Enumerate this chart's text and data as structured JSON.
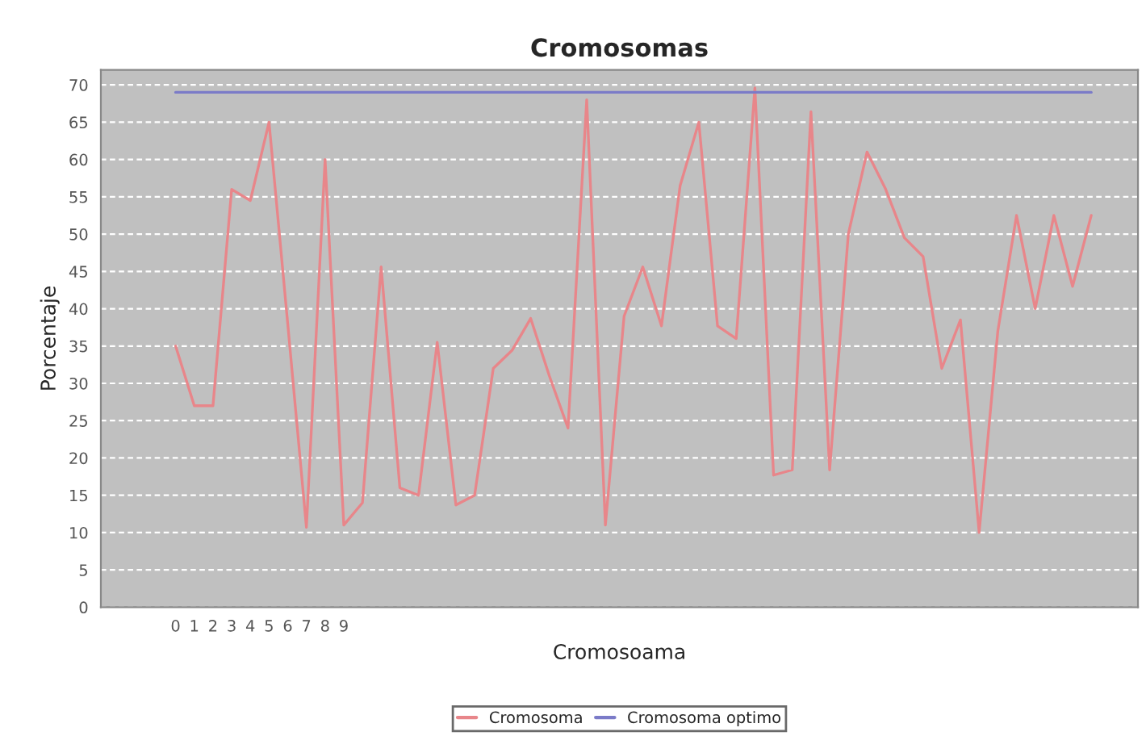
{
  "chart_data": {
    "type": "line",
    "title": "Cromosomas",
    "xlabel": "Cromosoama",
    "ylabel": "Porcentaje",
    "categories": [
      "0",
      "1",
      "2",
      "3",
      "4",
      "5",
      "6",
      "7",
      "8",
      "9",
      null,
      null,
      null,
      null,
      null,
      null,
      null,
      null,
      null,
      null,
      null,
      null,
      null,
      null,
      null,
      null,
      null,
      null,
      null,
      null,
      null,
      null,
      null,
      null,
      null,
      null,
      null,
      null,
      null,
      null,
      null,
      null,
      null,
      null,
      null,
      null,
      null,
      null,
      null,
      null
    ],
    "series": [
      {
        "name": "Cromosoma",
        "color": "#e8868a",
        "values": [
          35,
          27,
          27,
          56,
          54.5,
          65,
          38,
          10.7,
          60,
          11,
          14,
          45.6,
          16,
          15,
          35.5,
          13.7,
          15,
          32,
          34.4,
          38.7,
          31,
          24,
          68,
          11,
          39,
          45.6,
          37.7,
          56.5,
          65,
          37.7,
          36,
          69.6,
          17.7,
          18.4,
          66.4,
          18.4,
          50,
          61,
          56,
          49.5,
          47,
          32,
          38.5,
          10,
          37,
          52.5,
          40,
          52.5,
          43,
          52.5
        ]
      },
      {
        "name": "Cromosoma optimo",
        "color": "#7b7bc8",
        "values": [
          69,
          69,
          69,
          69,
          69,
          69,
          69,
          69,
          69,
          69,
          69,
          69,
          69,
          69,
          69,
          69,
          69,
          69,
          69,
          69,
          69,
          69,
          69,
          69,
          69,
          69,
          69,
          69,
          69,
          69,
          69,
          69,
          69,
          69,
          69,
          69,
          69,
          69,
          69,
          69,
          69,
          69,
          69,
          69,
          69,
          69,
          69,
          69,
          69,
          69
        ]
      }
    ],
    "ylim": [
      0,
      72
    ],
    "yticks": [
      0,
      5,
      10,
      15,
      20,
      25,
      30,
      35,
      40,
      45,
      50,
      55,
      60,
      65,
      70
    ],
    "grid": "y",
    "legend": "bottom",
    "marker": "none",
    "line_style": "solid"
  }
}
